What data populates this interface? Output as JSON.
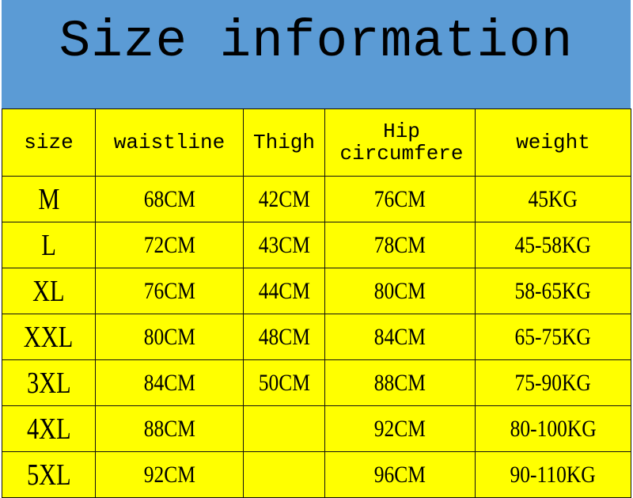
{
  "title": "Size information",
  "colors": {
    "header_bg": "#5b9bd5",
    "table_bg": "#ffff00"
  },
  "columns": [
    "size",
    "waistline",
    "Thigh",
    "Hip circumfere",
    "weight"
  ],
  "rows": [
    [
      "M",
      "68CM",
      "42CM",
      "76CM",
      "45KG"
    ],
    [
      "L",
      "72CM",
      "43CM",
      "78CM",
      "45-58KG"
    ],
    [
      "XL",
      "76CM",
      "44CM",
      "80CM",
      "58-65KG"
    ],
    [
      "XXL",
      "80CM",
      "48CM",
      "84CM",
      "65-75KG"
    ],
    [
      "3XL",
      "84CM",
      "50CM",
      "88CM",
      "75-90KG"
    ],
    [
      "4XL",
      "88CM",
      "",
      "92CM",
      "80-100KG"
    ],
    [
      "5XL",
      "92CM",
      "",
      "96CM",
      "90-110KG"
    ]
  ]
}
